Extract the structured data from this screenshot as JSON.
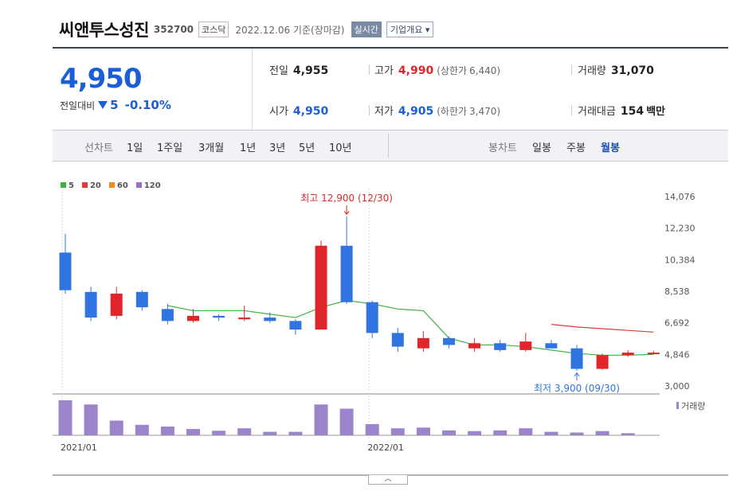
{
  "header": {
    "name": "씨앤투스성진",
    "code": "352700",
    "market": "코스닥",
    "date": "2022.12.06 기준(장마감)",
    "realtime": "실시간",
    "company": "기업개요"
  },
  "price": {
    "current": "4,950",
    "change_label": "전일대비",
    "change": "5",
    "rate": "-0.10%"
  },
  "stats": {
    "prev_label": "전일",
    "prev": "4,955",
    "high_label": "고가",
    "high": "4,990",
    "upper_label": "(상한가",
    "upper": "6,440)",
    "volume_label": "거래량",
    "volume": "31,070",
    "open_label": "시가",
    "open": "4,950",
    "low_label": "저가",
    "low": "4,905",
    "lower_label": "(하한가",
    "lower": "3,470)",
    "amount_label": "거래대금",
    "amount": "154",
    "amount_unit": "백만"
  },
  "tabs": {
    "line_label": "선차트",
    "line": [
      "1일",
      "1주일",
      "3개월",
      "1년",
      "3년",
      "5년",
      "10년"
    ],
    "candle_label": "봉차트",
    "candle": [
      "일봉",
      "주봉",
      "월봉"
    ],
    "candle_selected": "월봉"
  },
  "chart_data": {
    "type": "candlestick",
    "legend": [
      {
        "name": "5",
        "color": "#3fb33f"
      },
      {
        "name": "20",
        "color": "#e03a3a"
      },
      {
        "name": "60",
        "color": "#f08a1c"
      },
      {
        "name": "120",
        "color": "#9b6cc9"
      }
    ],
    "y_ticks": [
      "14,076",
      "12,230",
      "10,384",
      "8,538",
      "6,692",
      "4,846",
      "3,000"
    ],
    "ylim": [
      3000,
      14076
    ],
    "x_labels": [
      {
        "index": 0,
        "text": "2021/01"
      },
      {
        "index": 12,
        "text": "2022/01"
      }
    ],
    "candles": [
      {
        "o": 10800,
        "h": 11900,
        "l": 8400,
        "c": 8600
      },
      {
        "o": 8500,
        "h": 8800,
        "l": 6800,
        "c": 7000
      },
      {
        "o": 7100,
        "h": 8800,
        "l": 6900,
        "c": 8400
      },
      {
        "o": 8500,
        "h": 8600,
        "l": 7400,
        "c": 7600
      },
      {
        "o": 7500,
        "h": 7800,
        "l": 6600,
        "c": 6800
      },
      {
        "o": 6800,
        "h": 7500,
        "l": 6700,
        "c": 7100
      },
      {
        "o": 7100,
        "h": 7200,
        "l": 6800,
        "c": 7000
      },
      {
        "o": 6900,
        "h": 7700,
        "l": 6800,
        "c": 7000
      },
      {
        "o": 7000,
        "h": 7300,
        "l": 6700,
        "c": 6800
      },
      {
        "o": 6800,
        "h": 6900,
        "l": 6000,
        "c": 6300
      },
      {
        "o": 6300,
        "h": 11500,
        "l": 6300,
        "c": 11200
      },
      {
        "o": 11200,
        "h": 12900,
        "l": 7800,
        "c": 7900
      },
      {
        "o": 7900,
        "h": 8000,
        "l": 5800,
        "c": 6100
      },
      {
        "o": 6100,
        "h": 6400,
        "l": 5000,
        "c": 5300
      },
      {
        "o": 5200,
        "h": 6200,
        "l": 5000,
        "c": 5800
      },
      {
        "o": 5800,
        "h": 5900,
        "l": 5200,
        "c": 5400
      },
      {
        "o": 5200,
        "h": 5800,
        "l": 5000,
        "c": 5500
      },
      {
        "o": 5500,
        "h": 5700,
        "l": 5000,
        "c": 5100
      },
      {
        "o": 5100,
        "h": 6100,
        "l": 5000,
        "c": 5600
      },
      {
        "o": 5500,
        "h": 5700,
        "l": 5200,
        "c": 5200
      },
      {
        "o": 5200,
        "h": 5400,
        "l": 3900,
        "c": 4000
      },
      {
        "o": 4000,
        "h": 4900,
        "l": 3950,
        "c": 4800
      },
      {
        "o": 4800,
        "h": 5100,
        "l": 4700,
        "c": 4950
      },
      {
        "o": 4900,
        "h": 5050,
        "l": 4850,
        "c": 4950
      }
    ],
    "ma5": [
      null,
      null,
      null,
      null,
      7700,
      7400,
      7400,
      7400,
      7200,
      7000,
      7600,
      8000,
      7800,
      7500,
      7400,
      5800,
      5400,
      5400,
      5300,
      5100,
      4900,
      4800,
      4800,
      4850
    ],
    "ma20": [
      null,
      null,
      null,
      null,
      null,
      null,
      null,
      null,
      null,
      null,
      null,
      null,
      null,
      null,
      null,
      null,
      null,
      null,
      null,
      6600,
      6450,
      6350,
      6250,
      6150
    ],
    "volume": [
      100,
      88,
      42,
      30,
      25,
      18,
      13,
      20,
      10,
      10,
      88,
      76,
      32,
      20,
      22,
      14,
      12,
      14,
      20,
      10,
      8,
      12,
      6,
      0
    ],
    "volume_label": "거래량",
    "annotations": {
      "high": "최고 12,900 (12/30)",
      "low": "최저 3,900 (09/30)"
    }
  }
}
